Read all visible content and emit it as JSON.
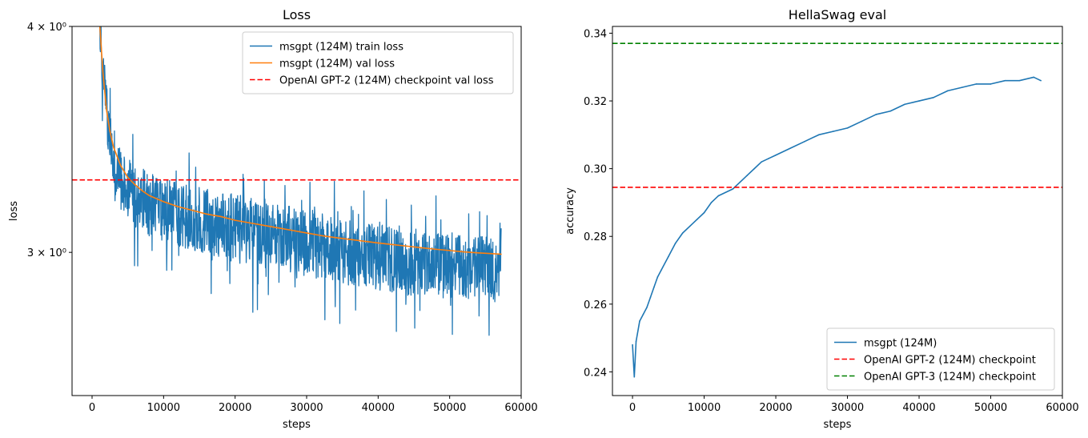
{
  "chart_data": [
    {
      "type": "line",
      "title": "Loss",
      "xlabel": "steps",
      "ylabel": "loss",
      "xlim": [
        -2800,
        60000
      ],
      "ylim": [
        2.5,
        4.0
      ],
      "yscale": "log",
      "grid": false,
      "legend_position": "top-right",
      "x_ticks": [
        0,
        10000,
        20000,
        30000,
        40000,
        50000,
        60000
      ],
      "x_tick_labels": [
        "0",
        "10000",
        "20000",
        "30000",
        "40000",
        "50000",
        "60000"
      ],
      "y_ticks": [
        3.0,
        4.0
      ],
      "y_tick_labels": [
        "3 × 10⁰",
        "4 × 10⁰"
      ],
      "series": [
        {
          "name": "msgpt (124M) train loss",
          "color": "#1f77b4",
          "style": "solid",
          "x": [
            1000,
            1500,
            2000,
            2500,
            3000,
            3500,
            4000,
            5000,
            6000,
            7000,
            8000,
            10000,
            12000,
            15000,
            18000,
            20000,
            22000,
            24000,
            26000,
            28000,
            30000,
            32000,
            34000,
            36000,
            38000,
            40000,
            42000,
            44000,
            46000,
            48000,
            50000,
            52000,
            54000,
            56000,
            57200
          ],
          "y": [
            4.1,
            3.8,
            3.6,
            3.48,
            3.4,
            3.35,
            3.31,
            3.27,
            3.24,
            3.22,
            3.2,
            3.17,
            3.15,
            3.12,
            3.1,
            3.08,
            3.06,
            3.05,
            3.04,
            3.03,
            3.02,
            3.01,
            3.0,
            2.99,
            2.98,
            2.97,
            2.96,
            2.96,
            2.95,
            2.95,
            2.94,
            2.94,
            2.94,
            2.93,
            2.93
          ],
          "y_range_low": [
            3.95,
            3.65,
            3.45,
            3.34,
            3.26,
            3.2,
            3.17,
            3.12,
            3.1,
            3.08,
            3.06,
            3.04,
            3.02,
            3.0,
            2.98,
            2.96,
            2.94,
            2.94,
            2.93,
            2.92,
            2.91,
            2.9,
            2.89,
            2.88,
            2.87,
            2.86,
            2.84,
            2.84,
            2.84,
            2.83,
            2.83,
            2.83,
            2.82,
            2.82,
            2.82
          ],
          "y_range_high": [
            4.2,
            3.95,
            3.75,
            3.6,
            3.5,
            3.45,
            3.42,
            3.38,
            3.36,
            3.34,
            3.32,
            3.3,
            3.28,
            3.26,
            3.24,
            3.23,
            3.22,
            3.2,
            3.19,
            3.18,
            3.17,
            3.16,
            3.15,
            3.14,
            3.13,
            3.12,
            3.11,
            3.1,
            3.09,
            3.08,
            3.08,
            3.07,
            3.07,
            3.06,
            3.06
          ]
        },
        {
          "name": "msgpt (124M) val loss",
          "color": "#ff7f0e",
          "style": "solid",
          "x": [
            1000,
            1500,
            2000,
            2500,
            3000,
            3500,
            4000,
            5000,
            6000,
            7000,
            8000,
            10000,
            12000,
            14000,
            16000,
            18000,
            20000,
            22000,
            24000,
            26000,
            28000,
            30000,
            32000,
            34000,
            36000,
            38000,
            40000,
            42000,
            44000,
            46000,
            48000,
            50000,
            52000,
            54000,
            56000,
            57200
          ],
          "y": [
            4.05,
            3.78,
            3.6,
            3.5,
            3.43,
            3.39,
            3.35,
            3.3,
            3.27,
            3.245,
            3.225,
            3.2,
            3.18,
            3.165,
            3.15,
            3.14,
            3.125,
            3.115,
            3.105,
            3.095,
            3.085,
            3.075,
            3.065,
            3.057,
            3.05,
            3.043,
            3.036,
            3.03,
            3.024,
            3.018,
            3.012,
            3.007,
            3.002,
            2.998,
            2.995,
            2.993
          ]
        },
        {
          "name": "OpenAI GPT-2 (124M) checkpoint val loss",
          "color": "#ff0000",
          "style": "dashed",
          "hline": 3.29
        }
      ]
    },
    {
      "type": "line",
      "title": "HellaSwag eval",
      "xlabel": "steps",
      "ylabel": "accuracy",
      "xlim": [
        -2800,
        60000
      ],
      "ylim": [
        0.233,
        0.342
      ],
      "grid": false,
      "legend_position": "bottom-right",
      "x_ticks": [
        0,
        10000,
        20000,
        30000,
        40000,
        50000,
        60000
      ],
      "x_tick_labels": [
        "0",
        "10000",
        "20000",
        "30000",
        "40000",
        "50000",
        "60000"
      ],
      "y_ticks": [
        0.24,
        0.26,
        0.28,
        0.3,
        0.32,
        0.34
      ],
      "y_tick_labels": [
        "0.24",
        "0.26",
        "0.28",
        "0.30",
        "0.32",
        "0.34"
      ],
      "series": [
        {
          "name": "msgpt (124M)",
          "color": "#1f77b4",
          "style": "solid",
          "x": [
            0,
            250,
            500,
            1000,
            1500,
            2000,
            2500,
            3000,
            3500,
            4000,
            5000,
            6000,
            7000,
            8000,
            9000,
            10000,
            11000,
            12000,
            13000,
            14000,
            15000,
            16000,
            17000,
            18000,
            19000,
            20000,
            22000,
            24000,
            26000,
            28000,
            30000,
            32000,
            34000,
            36000,
            38000,
            40000,
            42000,
            44000,
            46000,
            48000,
            50000,
            52000,
            54000,
            56000,
            57000
          ],
          "y": [
            0.248,
            0.2385,
            0.249,
            0.255,
            0.257,
            0.259,
            0.262,
            0.265,
            0.268,
            0.27,
            0.274,
            0.278,
            0.281,
            0.283,
            0.285,
            0.287,
            0.29,
            0.292,
            0.293,
            0.294,
            0.296,
            0.298,
            0.3,
            0.302,
            0.303,
            0.304,
            0.306,
            0.308,
            0.31,
            0.311,
            0.312,
            0.314,
            0.316,
            0.317,
            0.319,
            0.32,
            0.321,
            0.323,
            0.324,
            0.325,
            0.325,
            0.326,
            0.326,
            0.327,
            0.326
          ]
        },
        {
          "name": "OpenAI GPT-2 (124M) checkpoint",
          "color": "#ff0000",
          "style": "dashed",
          "hline": 0.2945
        },
        {
          "name": "OpenAI GPT-3 (124M) checkpoint",
          "color": "#008000",
          "style": "dashed",
          "hline": 0.337
        }
      ]
    }
  ]
}
